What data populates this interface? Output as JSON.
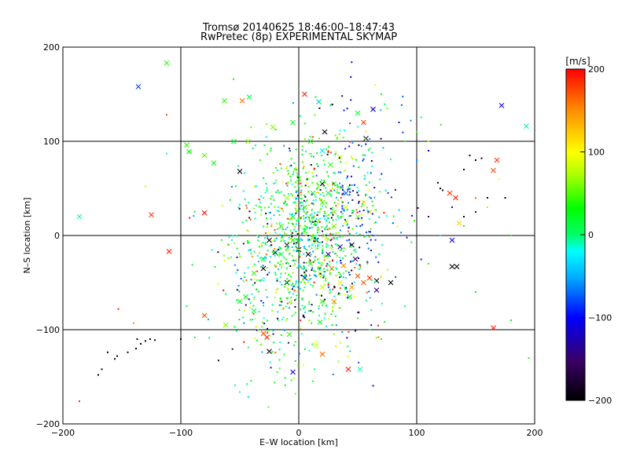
{
  "chart_data": {
    "type": "scatter",
    "title": "Tromsø 20140625 18:46:00–18:47:43",
    "subtitle": "RwPretec (8p) EXPERIMENTAL SKYMAP",
    "xlabel": "E–W location [km]",
    "ylabel": "N–S location [km]",
    "xlim": [
      -200,
      200
    ],
    "ylim": [
      -200,
      200
    ],
    "x_ticks": [
      "−200",
      "−100",
      "0",
      "100",
      "200"
    ],
    "y_ticks": [
      "200",
      "100",
      "0",
      "−100",
      "−200"
    ],
    "grid": true,
    "colorbar": {
      "label": "[m/s]",
      "range": [
        -200,
        200
      ],
      "ticks": [
        "200",
        "100",
        "0",
        "−100",
        "−200"
      ],
      "colormap": "rainbow: black(-200) → blue(-100) → cyan → green(0) → yellow(100) → red(200)"
    },
    "series": [
      {
        "marker": "x",
        "points": [
          [
            -112,
            183,
            40
          ],
          [
            -136,
            158,
            -80
          ],
          [
            -63,
            143,
            40
          ],
          [
            -42,
            147,
            10
          ],
          [
            -48,
            143,
            160
          ],
          [
            5,
            150,
            190
          ],
          [
            17,
            142,
            -40
          ],
          [
            50,
            130,
            20
          ],
          [
            63,
            134,
            -120
          ],
          [
            55,
            120,
            180
          ],
          [
            57,
            103,
            -160
          ],
          [
            172,
            138,
            -110
          ],
          [
            193,
            116,
            -10
          ],
          [
            -95,
            96,
            40
          ],
          [
            -93,
            89,
            30
          ],
          [
            -80,
            85,
            50
          ],
          [
            -72,
            77,
            30
          ],
          [
            -55,
            100,
            20
          ],
          [
            -43,
            100,
            60
          ],
          [
            -50,
            68,
            -200
          ],
          [
            20,
            90,
            -30
          ],
          [
            35,
            83,
            70
          ],
          [
            27,
            75,
            40
          ],
          [
            22,
            110,
            -190
          ],
          [
            10,
            100,
            30
          ],
          [
            -22,
            115,
            60
          ],
          [
            -5,
            120,
            20
          ],
          [
            -186,
            20,
            -10
          ],
          [
            -125,
            22,
            180
          ],
          [
            -80,
            24,
            190
          ],
          [
            -110,
            -17,
            190
          ],
          [
            128,
            45,
            180
          ],
          [
            133,
            40,
            190
          ],
          [
            136,
            13,
            120
          ],
          [
            130,
            -5,
            -110
          ],
          [
            130,
            -33,
            -190
          ],
          [
            134,
            -33,
            -200
          ],
          [
            165,
            69,
            170
          ],
          [
            168,
            80,
            180
          ],
          [
            165,
            -98,
            190
          ],
          [
            -80,
            -85,
            170
          ],
          [
            -62,
            -95,
            60
          ],
          [
            -50,
            -70,
            20
          ],
          [
            -45,
            -65,
            30
          ],
          [
            -38,
            -80,
            10
          ],
          [
            -30,
            -104,
            170
          ],
          [
            -27,
            -108,
            190
          ],
          [
            -25,
            -123,
            -200
          ],
          [
            -8,
            -105,
            40
          ],
          [
            18,
            -92,
            30
          ],
          [
            15,
            -117,
            80
          ],
          [
            20,
            -126,
            160
          ],
          [
            42,
            -142,
            190
          ],
          [
            52,
            -142,
            -10
          ],
          [
            -5,
            -145,
            -100
          ],
          [
            -25,
            -5,
            -200
          ],
          [
            -20,
            -18,
            -200
          ],
          [
            -10,
            -10,
            -170
          ],
          [
            0,
            -15,
            -200
          ],
          [
            8,
            -20,
            -200
          ],
          [
            15,
            -5,
            -190
          ],
          [
            25,
            -20,
            -140
          ],
          [
            35,
            -12,
            -120
          ],
          [
            45,
            -10,
            -200
          ],
          [
            48,
            -25,
            -150
          ],
          [
            10,
            -30,
            40
          ],
          [
            18,
            -40,
            70
          ],
          [
            28,
            -35,
            160
          ],
          [
            38,
            -32,
            150
          ],
          [
            -30,
            -35,
            -190
          ],
          [
            -10,
            -50,
            -200
          ],
          [
            5,
            -45,
            -100
          ],
          [
            20,
            -55,
            80
          ],
          [
            35,
            -50,
            90
          ],
          [
            45,
            -55,
            140
          ],
          [
            50,
            -43,
            170
          ],
          [
            55,
            -50,
            170
          ],
          [
            60,
            -45,
            180
          ],
          [
            66,
            -48,
            -190
          ],
          [
            78,
            -50,
            -200
          ],
          [
            66,
            -58,
            -140
          ],
          [
            43,
            -65,
            30
          ],
          [
            30,
            -70,
            150
          ],
          [
            20,
            -70,
            40
          ],
          [
            -38,
            -40,
            40
          ],
          [
            -30,
            -25,
            30
          ],
          [
            -15,
            -20,
            10
          ],
          [
            -5,
            -5,
            30
          ],
          [
            5,
            5,
            20
          ],
          [
            12,
            -2,
            50
          ],
          [
            22,
            0,
            70
          ],
          [
            30,
            10,
            60
          ],
          [
            40,
            15,
            90
          ],
          [
            30,
            25,
            50
          ],
          [
            20,
            35,
            40
          ],
          [
            12,
            45,
            20
          ],
          [
            5,
            30,
            30
          ],
          [
            -5,
            20,
            10
          ],
          [
            -15,
            10,
            40
          ],
          [
            20,
            55,
            -200
          ],
          [
            25,
            45,
            10
          ],
          [
            -10,
            40,
            70
          ],
          [
            0,
            60,
            40
          ],
          [
            40,
            30,
            80
          ],
          [
            50,
            20,
            60
          ],
          [
            60,
            25,
            120
          ],
          [
            40,
            45,
            -70
          ],
          [
            30,
            55,
            50
          ],
          [
            55,
            35,
            100
          ]
        ]
      },
      {
        "marker": "dot",
        "points": [
          [
            -170,
            -148,
            -200
          ],
          [
            -167,
            -142,
            -200
          ],
          [
            -162,
            -124,
            -200
          ],
          [
            -156,
            -131,
            -200
          ],
          [
            -154,
            -128,
            -200
          ],
          [
            -145,
            -124,
            -200
          ],
          [
            -137,
            -110,
            -200
          ],
          [
            -134,
            -115,
            -200
          ],
          [
            -130,
            -112,
            -200
          ],
          [
            -126,
            -110,
            -200
          ],
          [
            -122,
            -111,
            -200
          ],
          [
            -138,
            -120,
            -200
          ],
          [
            -186,
            -176,
            190
          ],
          [
            -153,
            -78,
            190
          ],
          [
            -140,
            -93,
            150
          ],
          [
            -112,
            128,
            170
          ],
          [
            -130,
            52,
            70
          ],
          [
            -112,
            87,
            -10
          ],
          [
            -100,
            -110,
            -200
          ],
          [
            -95,
            -75,
            20
          ],
          [
            60,
            -100,
            0
          ],
          [
            70,
            -110,
            20
          ],
          [
            90,
            -75,
            0
          ],
          [
            110,
            20,
            -150
          ],
          [
            120,
            50,
            -200
          ],
          [
            140,
            70,
            -200
          ],
          [
            150,
            80,
            -200
          ],
          [
            145,
            85,
            -200
          ],
          [
            155,
            82,
            -200
          ],
          [
            175,
            40,
            -200
          ],
          [
            160,
            40,
            -200
          ],
          [
            150,
            25,
            -150
          ],
          [
            140,
            20,
            -200
          ],
          [
            130,
            30,
            -150
          ],
          [
            118,
            56,
            -200
          ],
          [
            122,
            48,
            -180
          ],
          [
            90,
            100,
            20
          ],
          [
            100,
            110,
            40
          ],
          [
            110,
            100,
            70
          ],
          [
            85,
            120,
            -120
          ],
          [
            95,
            122,
            -60
          ],
          [
            75,
            135,
            60
          ],
          [
            65,
            160,
            90
          ],
          [
            70,
            150,
            20
          ],
          [
            100,
            80,
            -60
          ],
          [
            110,
            90,
            -100
          ],
          [
            120,
            0,
            -30
          ],
          [
            140,
            10,
            20
          ],
          [
            150,
            40,
            160
          ],
          [
            160,
            30,
            120
          ],
          [
            170,
            60,
            100
          ],
          [
            180,
            0,
            20
          ],
          [
            195,
            -130,
            40
          ],
          [
            180,
            -90,
            30
          ],
          [
            150,
            -60,
            20
          ],
          [
            110,
            -30,
            40
          ]
        ]
      }
    ]
  }
}
